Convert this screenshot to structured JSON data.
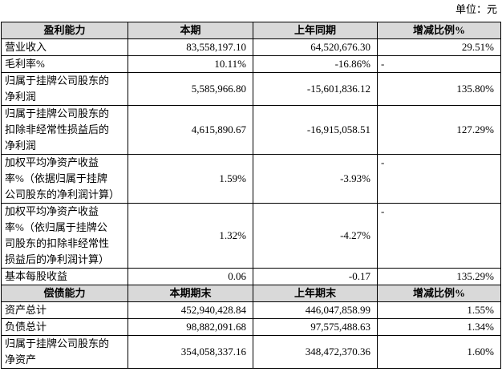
{
  "unit": "单位：元",
  "sections": [
    {
      "header": [
        "盈利能力",
        "本期",
        "上年同期",
        "增减比例%"
      ],
      "rows": [
        [
          "营业收入",
          "83,558,197.10",
          "64,520,676.30",
          "29.51%"
        ],
        [
          "毛利率%",
          "10.11%",
          "-16.86%",
          "-"
        ],
        [
          "归属于挂牌公司股东的净利润",
          "5,585,966.80",
          "-15,601,836.12",
          "135.80%"
        ],
        [
          "归属于挂牌公司股东的扣除非经常性损益后的净利润",
          "4,615,890.67",
          "-16,915,058.51",
          "127.29%"
        ],
        [
          "加权平均净资产收益率%（依据归属于挂牌公司股东的净利润计算）",
          "1.59%",
          "-3.93%",
          "-"
        ],
        [
          "加权平均净资产收益率%（依归属于挂牌公司股东的扣除非经常性损益后的净利润计算）",
          "1.32%",
          "-4.27%",
          "-"
        ],
        [
          "基本每股收益",
          "0.06",
          "-0.17",
          "135.29%"
        ]
      ]
    },
    {
      "header": [
        "偿债能力",
        "本期期末",
        "上年期末",
        "增减比例%"
      ],
      "rows": [
        [
          "资产总计",
          "452,940,428.84",
          "446,047,858.99",
          "1.55%"
        ],
        [
          "负债总计",
          "98,882,091.68",
          "97,575,488.63",
          "1.34%"
        ],
        [
          "归属于挂牌公司股东的净资产",
          "354,058,337.16",
          "348,472,370.36",
          "1.60%"
        ]
      ]
    }
  ]
}
